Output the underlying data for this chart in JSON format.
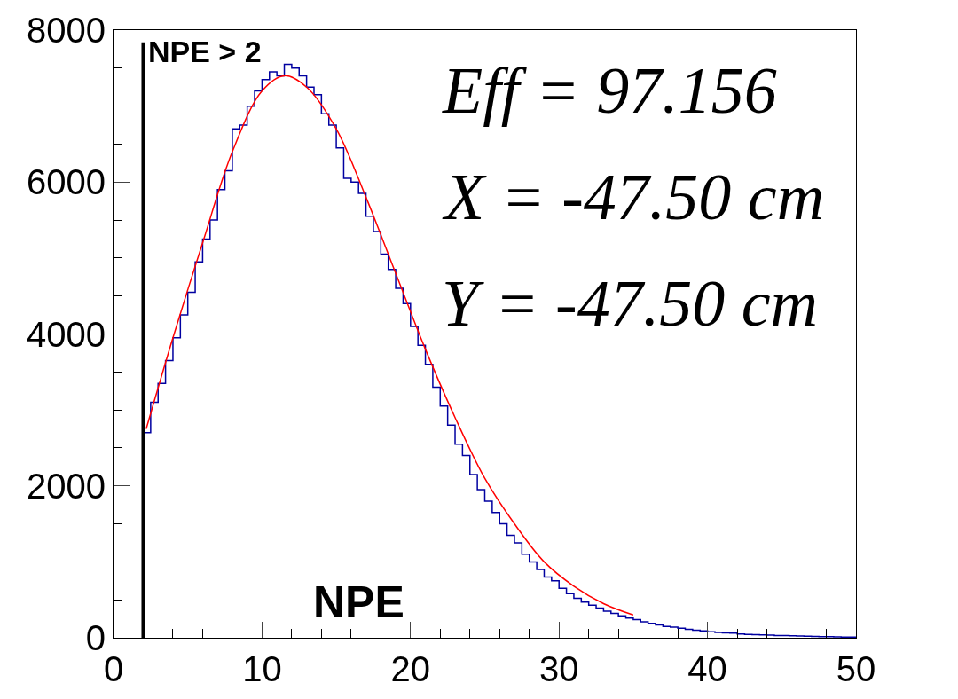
{
  "chart_data": {
    "type": "histogram",
    "xlabel": "NPE",
    "bins": [
      2,
      2.5,
      3,
      3.5,
      4,
      4.5,
      5,
      5.5,
      6,
      6.5,
      7,
      7.5,
      8,
      8.5,
      9,
      9.5,
      10,
      10.5,
      11,
      11.5,
      12,
      12.5,
      13,
      13.5,
      14,
      14.5,
      15,
      15.5,
      16,
      16.5,
      17,
      17.5,
      18,
      18.5,
      19,
      19.5,
      20,
      20.5,
      21,
      21.5,
      22,
      22.5,
      23,
      23.5,
      24,
      24.5,
      25,
      25.5,
      26,
      26.5,
      27,
      27.5,
      28,
      28.5,
      29,
      29.5,
      30,
      30.5,
      31,
      31.5,
      32,
      32.5,
      33,
      33.5,
      34,
      34.5,
      35,
      35.5,
      36,
      36.5,
      37,
      37.5,
      38,
      38.5,
      39,
      39.5,
      40,
      40.5,
      41,
      41.5,
      42,
      42.5,
      43,
      43.5,
      44,
      44.5,
      45,
      45.5,
      46,
      46.5,
      47,
      47.5,
      48,
      48.5,
      49,
      49.5,
      50
    ],
    "values": [
      2700,
      3100,
      3350,
      3650,
      3950,
      4250,
      4550,
      4950,
      5250,
      5500,
      5900,
      6150,
      6700,
      6750,
      7000,
      7200,
      7350,
      7450,
      7400,
      7550,
      7500,
      7400,
      7250,
      7150,
      6900,
      6750,
      6450,
      6050,
      6000,
      5850,
      5550,
      5350,
      5050,
      4850,
      4600,
      4400,
      4100,
      3850,
      3600,
      3300,
      3050,
      2800,
      2550,
      2400,
      2150,
      1950,
      1800,
      1650,
      1500,
      1350,
      1250,
      1100,
      1000,
      900,
      800,
      750,
      650,
      580,
      520,
      470,
      430,
      390,
      350,
      320,
      290,
      260,
      240,
      210,
      190,
      170,
      150,
      140,
      125,
      110,
      100,
      90,
      80,
      70,
      65,
      60,
      50,
      45,
      40,
      38,
      35,
      30,
      28,
      25,
      22,
      20,
      18,
      15,
      14,
      12,
      10,
      8
    ],
    "color": "#0000a0",
    "series": [
      {
        "type": "line",
        "color": "#ff0000",
        "x": [
          2.2,
          4,
          6,
          8,
          10,
          11.5,
          13,
          15,
          17,
          19,
          21,
          23,
          25,
          27,
          29,
          31,
          33,
          35
        ],
        "values": [
          2750,
          3950,
          5200,
          6400,
          7200,
          7400,
          7250,
          6700,
          5800,
          4800,
          3800,
          2900,
          2100,
          1500,
          1000,
          680,
          450,
          300
        ]
      }
    ],
    "ref_lines": [
      {
        "axis": "x",
        "value": 2,
        "label": "NPE > 2",
        "color": "#000000"
      }
    ],
    "annotations": [
      "Eff = 97.156",
      "X = -47.50 cm",
      "Y = -47.50 cm"
    ],
    "xlim": [
      0,
      50
    ],
    "xticks": [
      0,
      10,
      20,
      30,
      40,
      50
    ],
    "ylim": [
      0,
      8000
    ],
    "yticks": [
      0,
      2000,
      4000,
      6000,
      8000
    ]
  }
}
